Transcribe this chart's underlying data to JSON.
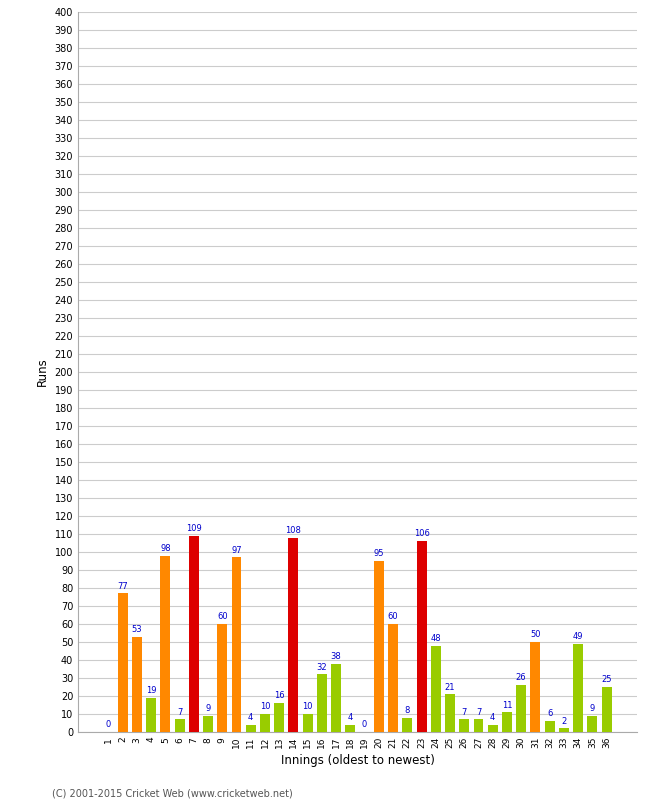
{
  "innings": [
    1,
    2,
    3,
    4,
    5,
    6,
    7,
    8,
    9,
    10,
    11,
    12,
    13,
    14,
    15,
    16,
    17,
    18,
    19,
    20,
    21,
    22,
    23,
    24,
    25,
    26,
    27,
    28,
    29,
    30,
    31,
    32,
    33,
    34,
    35,
    36
  ],
  "values": [
    0,
    77,
    53,
    19,
    98,
    7,
    109,
    9,
    60,
    97,
    4,
    10,
    16,
    108,
    10,
    32,
    38,
    4,
    0,
    95,
    60,
    8,
    106,
    48,
    21,
    7,
    7,
    4,
    11,
    26,
    50,
    6,
    2,
    49,
    9,
    25
  ],
  "colors": [
    "#99cc00",
    "#ff8800",
    "#ff8800",
    "#99cc00",
    "#ff8800",
    "#99cc00",
    "#dd0000",
    "#99cc00",
    "#ff8800",
    "#ff8800",
    "#99cc00",
    "#99cc00",
    "#99cc00",
    "#dd0000",
    "#99cc00",
    "#99cc00",
    "#99cc00",
    "#99cc00",
    "#99cc00",
    "#ff8800",
    "#ff8800",
    "#99cc00",
    "#dd0000",
    "#99cc00",
    "#99cc00",
    "#99cc00",
    "#99cc00",
    "#99cc00",
    "#99cc00",
    "#99cc00",
    "#ff8800",
    "#99cc00",
    "#99cc00",
    "#99cc00",
    "#99cc00",
    "#99cc00"
  ],
  "xlabel": "Innings (oldest to newest)",
  "ylabel": "Runs",
  "ylim": [
    0,
    400
  ],
  "yticks": [
    0,
    10,
    20,
    30,
    40,
    50,
    60,
    70,
    80,
    90,
    100,
    110,
    120,
    130,
    140,
    150,
    160,
    170,
    180,
    190,
    200,
    210,
    220,
    230,
    240,
    250,
    260,
    270,
    280,
    290,
    300,
    310,
    320,
    330,
    340,
    350,
    360,
    370,
    380,
    390,
    400
  ],
  "footer": "(C) 2001-2015 Cricket Web (www.cricketweb.net)",
  "bg_color": "#ffffff",
  "grid_color": "#cccccc",
  "label_color": "#0000cc"
}
